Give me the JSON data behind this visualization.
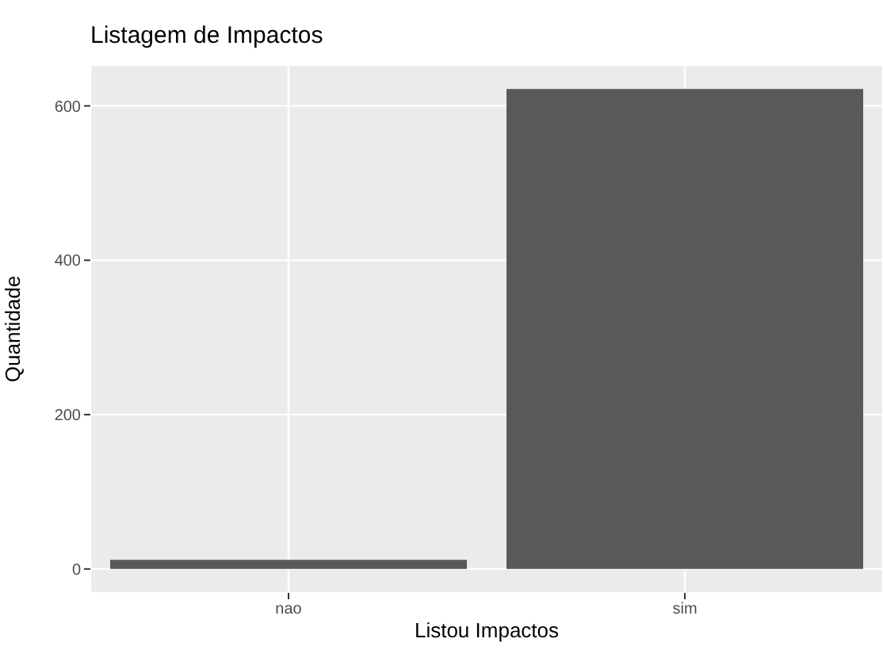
{
  "chart_data": {
    "type": "bar",
    "title": "Listagem de Impactos",
    "xlabel": "Listou Impactos",
    "ylabel": "Quantidade",
    "categories": [
      "nao",
      "sim"
    ],
    "values": [
      12,
      622
    ],
    "color": "#595959",
    "ylim": [
      -31,
      653
    ],
    "yticks": [
      0,
      200,
      400,
      600
    ],
    "grid": true
  }
}
